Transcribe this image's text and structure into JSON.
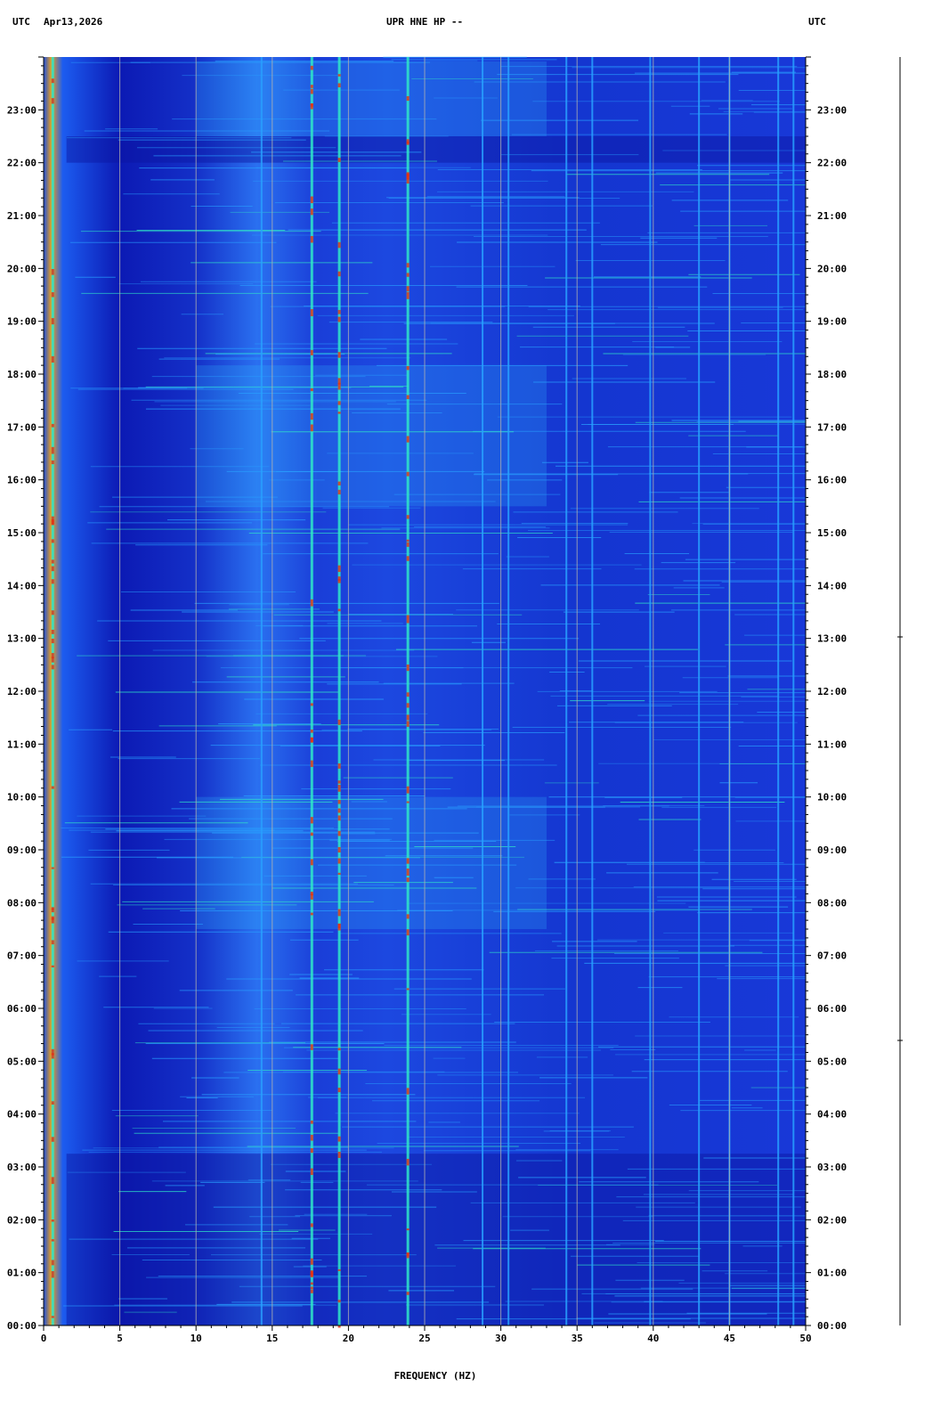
{
  "header": {
    "left_tz": "UTC",
    "date": "Apr13,2026",
    "station": "UPR HNE HP --",
    "right_tz": "UTC"
  },
  "chart_data": {
    "type": "heatmap",
    "title": "UPR HNE HP --",
    "xlabel": "FREQUENCY (HZ)",
    "ylabel": "",
    "xlim": [
      0,
      50
    ],
    "x_ticks": [
      "0",
      "5",
      "10",
      "15",
      "20",
      "25",
      "30",
      "35",
      "40",
      "45",
      "50"
    ],
    "ylim": [
      "00:00",
      "24:00"
    ],
    "y_ticks": [
      "00:00",
      "01:00",
      "02:00",
      "03:00",
      "04:00",
      "05:00",
      "06:00",
      "07:00",
      "08:00",
      "09:00",
      "10:00",
      "11:00",
      "12:00",
      "13:00",
      "14:00",
      "15:00",
      "16:00",
      "17:00",
      "18:00",
      "19:00",
      "20:00",
      "21:00",
      "22:00",
      "23:00"
    ],
    "grid": "vertical",
    "colors": {
      "background": "#1428c8",
      "low": "#0a14a0",
      "mid": "#28a0ff",
      "high": "#30e8c8",
      "peak": "#e83010"
    },
    "spectral_lines_hz": [
      0.6,
      14.3,
      17.6,
      19.4,
      23.9,
      28.8,
      30.5,
      34.3,
      36.0,
      39.8,
      43.0,
      45.0,
      48.2,
      49.2
    ],
    "noisy_periods": [
      {
        "start": "07:30",
        "end": "10:00"
      },
      {
        "start": "15:30",
        "end": "18:10"
      },
      {
        "start": "22:30",
        "end": "23:55"
      }
    ],
    "quiet_periods": [
      {
        "start": "00:00",
        "end": "03:15"
      },
      {
        "start": "22:00",
        "end": "22:30"
      }
    ]
  }
}
